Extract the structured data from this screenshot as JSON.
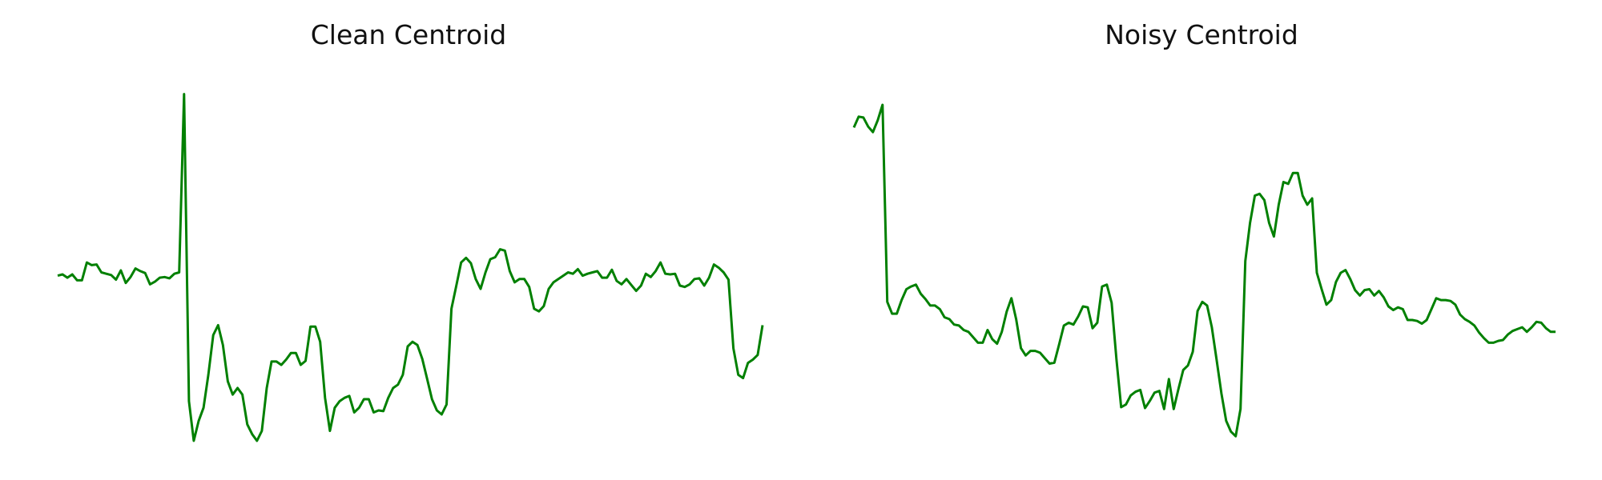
{
  "colors": {
    "line": "#008000",
    "background": "#ffffff"
  },
  "chart_data": [
    {
      "type": "line",
      "title": "Clean Centroid",
      "axes_visible": false,
      "grid": false,
      "ylim": [
        -2.5,
        3.0
      ],
      "series": [
        {
          "values": [
            0.0,
            0.02,
            -0.03,
            0.02,
            -0.07,
            -0.07,
            0.2,
            0.16,
            0.17,
            0.05,
            0.03,
            0.01,
            -0.06,
            0.08,
            -0.11,
            -0.02,
            0.11,
            0.07,
            0.04,
            -0.13,
            -0.09,
            -0.03,
            -0.02,
            -0.04,
            0.03,
            0.05,
            2.75,
            -1.9,
            -2.5,
            -2.2,
            -2.0,
            -1.5,
            -0.9,
            -0.75,
            -1.05,
            -1.6,
            -1.8,
            -1.7,
            -1.8,
            -2.25,
            -2.4,
            -2.5,
            -2.35,
            -1.7,
            -1.3,
            -1.3,
            -1.35,
            -1.27,
            -1.17,
            -1.17,
            -1.35,
            -1.29,
            -0.77,
            -0.77,
            -1.0,
            -1.85,
            -2.35,
            -2.0,
            -1.9,
            -1.85,
            -1.82,
            -2.07,
            -2.0,
            -1.87,
            -1.87,
            -2.07,
            -2.04,
            -2.05,
            -1.85,
            -1.7,
            -1.65,
            -1.5,
            -1.07,
            -1.0,
            -1.05,
            -1.26,
            -1.56,
            -1.87,
            -2.04,
            -2.1,
            -1.95,
            -0.5,
            -0.15,
            0.2,
            0.27,
            0.19,
            -0.05,
            -0.2,
            0.05,
            0.25,
            0.28,
            0.4,
            0.38,
            0.07,
            -0.1,
            -0.05,
            -0.05,
            -0.17,
            -0.5,
            -0.54,
            -0.46,
            -0.2,
            -0.1,
            -0.05,
            0.0,
            0.05,
            0.03,
            0.1,
            0.0,
            0.03,
            0.05,
            0.07,
            -0.03,
            -0.03,
            0.09,
            -0.08,
            -0.13,
            -0.05,
            -0.14,
            -0.23,
            -0.15,
            0.03,
            -0.02,
            0.07,
            0.2,
            0.03,
            0.02,
            0.03,
            -0.15,
            -0.17,
            -0.13,
            -0.05,
            -0.04,
            -0.15,
            -0.03,
            0.17,
            0.12,
            0.05,
            -0.06,
            -1.1,
            -1.5,
            -1.55,
            -1.32,
            -1.27,
            -1.2,
            -0.75
          ]
        }
      ]
    },
    {
      "type": "line",
      "title": "Noisy Centroid",
      "axes_visible": false,
      "grid": false,
      "ylim": [
        -1.5,
        2.5
      ],
      "series": [
        {
          "values": [
            1.95,
            2.07,
            2.06,
            1.96,
            1.9,
            2.03,
            2.2,
            0.03,
            -0.1,
            -0.1,
            0.05,
            0.17,
            0.2,
            0.22,
            0.12,
            0.06,
            -0.01,
            -0.01,
            -0.05,
            -0.14,
            -0.16,
            -0.22,
            -0.23,
            -0.28,
            -0.3,
            -0.36,
            -0.42,
            -0.42,
            -0.28,
            -0.38,
            -0.43,
            -0.3,
            -0.08,
            0.07,
            -0.16,
            -0.48,
            -0.56,
            -0.51,
            -0.51,
            -0.53,
            -0.59,
            -0.65,
            -0.64,
            -0.44,
            -0.23,
            -0.2,
            -0.22,
            -0.13,
            -0.02,
            -0.03,
            -0.26,
            -0.2,
            0.2,
            0.22,
            0.02,
            -0.6,
            -1.13,
            -1.1,
            -1.0,
            -0.96,
            -0.94,
            -1.14,
            -1.06,
            -0.97,
            -0.95,
            -1.15,
            -0.82,
            -1.15,
            -0.93,
            -0.72,
            -0.67,
            -0.52,
            -0.07,
            0.03,
            -0.01,
            -0.25,
            -0.61,
            -0.98,
            -1.28,
            -1.4,
            -1.45,
            -1.15,
            0.48,
            0.9,
            1.2,
            1.22,
            1.15,
            0.9,
            0.75,
            1.1,
            1.35,
            1.33,
            1.45,
            1.45,
            1.2,
            1.1,
            1.17,
            0.35,
            0.17,
            0.0,
            0.05,
            0.25,
            0.35,
            0.38,
            0.28,
            0.16,
            0.1,
            0.16,
            0.17,
            0.1,
            0.15,
            0.08,
            -0.02,
            -0.06,
            -0.03,
            -0.05,
            -0.17,
            -0.17,
            -0.18,
            -0.21,
            -0.17,
            -0.05,
            0.07,
            0.05,
            0.05,
            0.04,
            0.0,
            -0.11,
            -0.16,
            -0.19,
            -0.23,
            -0.31,
            -0.37,
            -0.42,
            -0.42,
            -0.4,
            -0.39,
            -0.33,
            -0.29,
            -0.27,
            -0.25,
            -0.3,
            -0.25,
            -0.19,
            -0.2,
            -0.26,
            -0.3,
            -0.3
          ]
        }
      ]
    }
  ]
}
